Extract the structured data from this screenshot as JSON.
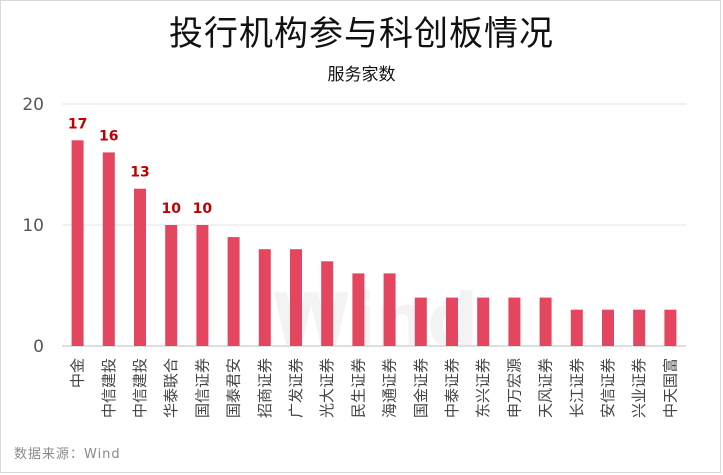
{
  "title": "投行机构参与科创板情况",
  "subtitle": "服务家数",
  "source": "数据来源：Wind",
  "watermark": "Wind",
  "colors": {
    "bar": "#e5465f",
    "label": "#c00000",
    "grid": "#e3e3e3",
    "axis": "#bfbfbf"
  },
  "chart_data": {
    "type": "bar",
    "title": "投行机构参与科创板情况",
    "subtitle": "服务家数",
    "categories": [
      "中金",
      "中信建投",
      "中信建投",
      "华泰联合",
      "国信证券",
      "国泰君安",
      "招商证券",
      "广发证券",
      "光大证券",
      "民生证券",
      "海通证券",
      "国金证券",
      "中泰证券",
      "东兴证券",
      "申万宏源",
      "天风证券",
      "长江证券",
      "安信证券",
      "兴业证券",
      "中天国富"
    ],
    "values": [
      17,
      16,
      13,
      10,
      10,
      9,
      8,
      8,
      7,
      6,
      6,
      4,
      4,
      4,
      4,
      4,
      3,
      3,
      3,
      3
    ],
    "data_labels": [
      "17",
      "16",
      "13",
      "10",
      "10",
      "",
      "",
      "",
      "",
      "",
      "",
      "",
      "",
      "",
      "",
      "",
      "",
      "",
      "",
      ""
    ],
    "yticks": [
      0,
      10,
      20
    ],
    "ylim": [
      0,
      20
    ],
    "xlabel": "",
    "ylabel": "",
    "grid": true,
    "legend": "none"
  }
}
